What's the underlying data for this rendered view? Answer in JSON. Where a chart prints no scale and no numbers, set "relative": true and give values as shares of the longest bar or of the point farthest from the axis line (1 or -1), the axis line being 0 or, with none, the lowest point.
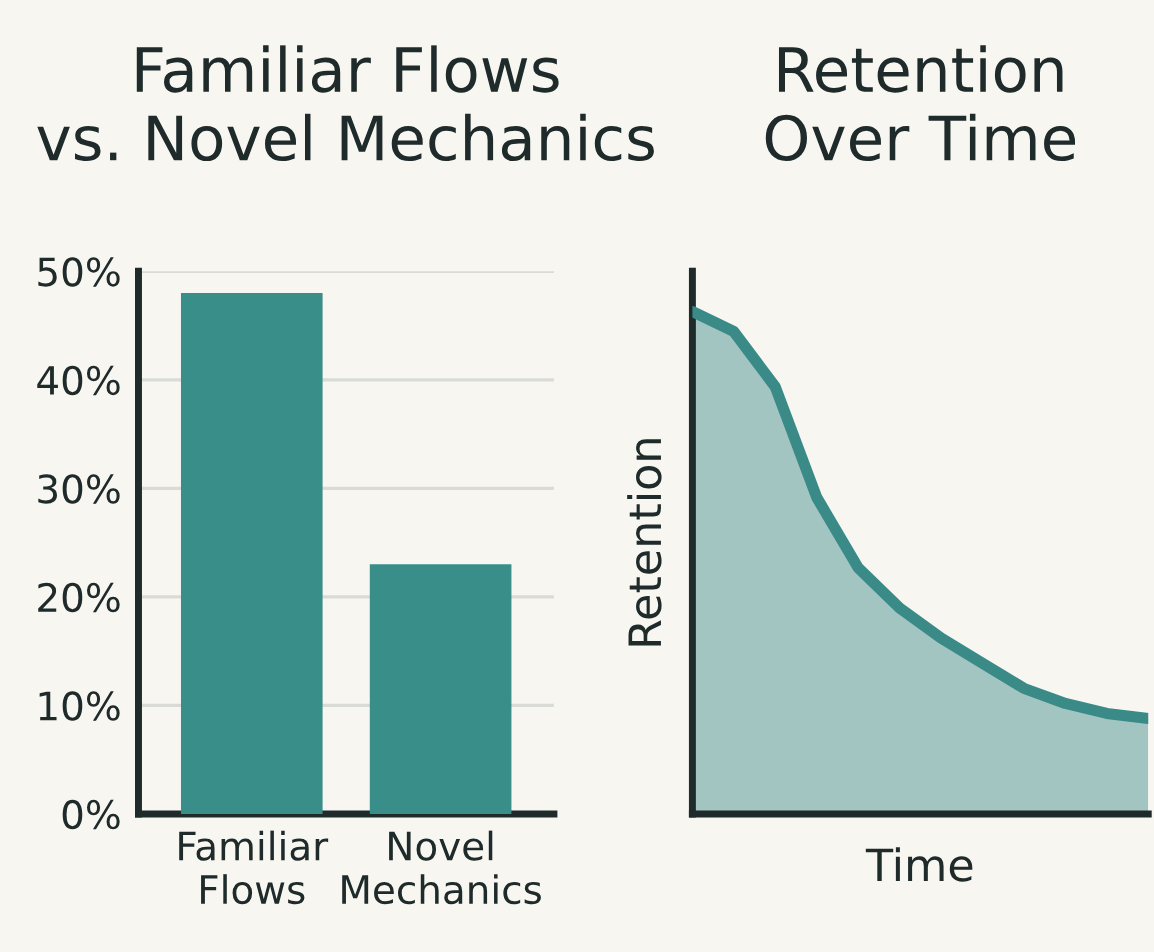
{
  "chart_data": [
    {
      "type": "bar",
      "title": "Familiar Flows\nvs. Novel Mechanics",
      "categories": [
        "Familiar\nFlows",
        "Novel\nMechanics"
      ],
      "values": [
        48,
        23
      ],
      "color": "#3a8e8a",
      "ylim": [
        0,
        50
      ],
      "yticks": [
        {
          "value": 0,
          "label": "0%"
        },
        {
          "value": 10,
          "label": "10%"
        },
        {
          "value": 20,
          "label": "20%"
        },
        {
          "value": 30,
          "label": "30%"
        },
        {
          "value": 40,
          "label": "40%"
        },
        {
          "value": 50,
          "label": "50%"
        }
      ],
      "grid": "y"
    },
    {
      "type": "area",
      "title": "Retention\nOver Time",
      "xlabel": "Time",
      "ylabel": "Retention",
      "relative": true,
      "grid": false,
      "categories": [
        null,
        null,
        null,
        null,
        null,
        null,
        null,
        null,
        null,
        null,
        null,
        null
      ],
      "series": [
        {
          "color": "#3a8a88",
          "values": [
            1.0,
            0.96,
            0.85,
            0.63,
            0.49,
            0.41,
            0.35,
            0.3,
            0.25,
            0.22,
            0.2,
            0.19
          ]
        }
      ]
    }
  ]
}
